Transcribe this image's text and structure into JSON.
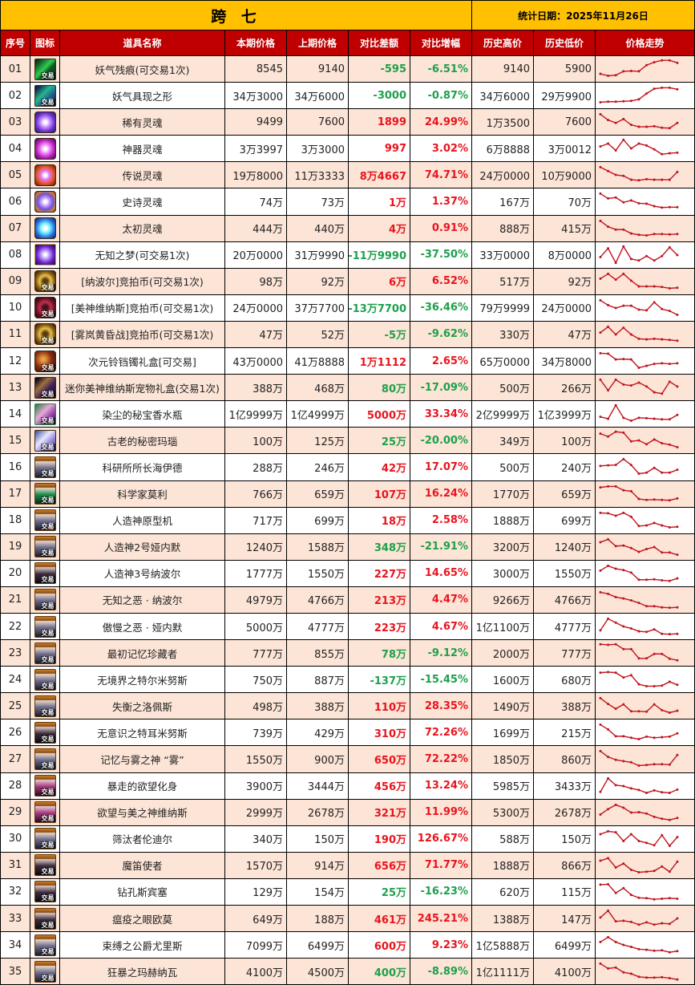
{
  "title": "跨 七",
  "stat_date_label": "统计日期：2025年11月26日",
  "columns": [
    "序号",
    "图标",
    "道具名称",
    "本期价格",
    "上期价格",
    "对比差额",
    "对比增幅",
    "历史高价",
    "历史低价",
    "价格走势"
  ],
  "colors": {
    "title_bg": "#ffc000",
    "header_bg": "#c00000",
    "row_alt_bg": "#fce4d6",
    "positive": "#e8141d",
    "negative": "#1ea04c",
    "sparkline": "#c0141e"
  },
  "rows": [
    {
      "idx": "01",
      "icon": "green",
      "tag": "交易",
      "name": "妖气残痕(可交易1次)",
      "cur": "8545",
      "prev": "9140",
      "diff": "-595",
      "pct": "-6.51%",
      "trend": "neg",
      "high": "9140",
      "low": "5900",
      "spark": [
        0.75,
        0.85,
        0.82,
        0.62,
        0.6,
        0.62,
        0.3,
        0.15,
        0.05,
        0.05,
        0.18
      ]
    },
    {
      "idx": "02",
      "icon": "teal",
      "tag": "交易",
      "name": "妖气具现之形",
      "cur": "34万3000",
      "prev": "34万6000",
      "diff": "-3000",
      "pct": "-0.87%",
      "trend": "neg",
      "high": "34万6000",
      "low": "29万9900",
      "spark": [
        0.85,
        0.82,
        0.82,
        0.8,
        0.78,
        0.7,
        0.4,
        0.15,
        0.1,
        0.1,
        0.18
      ]
    },
    {
      "idx": "03",
      "icon": "soul-purple",
      "tag": "",
      "name": "稀有灵魂",
      "cur": "9499",
      "prev": "7600",
      "diff": "1899",
      "pct": "24.99%",
      "trend": "pos",
      "high": "1万3500",
      "low": "7600",
      "spark": [
        0.1,
        0.4,
        0.55,
        0.35,
        0.65,
        0.75,
        0.75,
        0.72,
        0.8,
        0.82,
        0.55
      ]
    },
    {
      "idx": "04",
      "icon": "soul-magenta",
      "tag": "",
      "name": "神器灵魂",
      "cur": "3万3997",
      "prev": "3万3000",
      "diff": "997",
      "pct": "3.02%",
      "trend": "pos",
      "high": "6万8888",
      "low": "3万0012",
      "spark": [
        0.4,
        0.25,
        0.6,
        0.05,
        0.5,
        0.25,
        0.35,
        0.55,
        0.8,
        0.75,
        0.72
      ]
    },
    {
      "idx": "05",
      "icon": "soul-orange",
      "tag": "",
      "name": "传说灵魂",
      "cur": "19万8000",
      "prev": "11万3333",
      "diff": "8万4667",
      "pct": "74.71%",
      "trend": "pos",
      "high": "24万0000",
      "low": "10万9000",
      "spark": [
        0.1,
        0.3,
        0.5,
        0.55,
        0.75,
        0.78,
        0.72,
        0.75,
        0.75,
        0.75,
        0.35
      ]
    },
    {
      "idx": "06",
      "icon": "soul-blueorange",
      "tag": "",
      "name": "史诗灵魂",
      "cur": "74万",
      "prev": "73万",
      "diff": "1万",
      "pct": "1.37%",
      "trend": "pos",
      "high": "167万",
      "low": "70万",
      "spark": [
        0.1,
        0.35,
        0.3,
        0.55,
        0.45,
        0.6,
        0.62,
        0.75,
        0.82,
        0.8,
        0.8
      ]
    },
    {
      "idx": "07",
      "icon": "soul-cyan",
      "tag": "",
      "name": "太初灵魂",
      "cur": "444万",
      "prev": "440万",
      "diff": "4万",
      "pct": "0.91%",
      "trend": "pos",
      "high": "888万",
      "low": "415万",
      "spark": [
        0.1,
        0.4,
        0.55,
        0.55,
        0.75,
        0.82,
        0.85,
        0.78,
        0.78,
        0.8,
        0.78
      ]
    },
    {
      "idx": "08",
      "icon": "dream",
      "tag": "",
      "name": "无知之梦(可交易1次)",
      "cur": "20万0000",
      "prev": "31万9990",
      "diff": "-11万9990",
      "pct": "-37.50%",
      "trend": "neg",
      "high": "33万0000",
      "low": "8万0000",
      "spark": [
        0.6,
        0.15,
        0.9,
        0.05,
        0.7,
        0.78,
        0.55,
        0.78,
        0.55,
        0.1,
        0.5
      ]
    },
    {
      "idx": "09",
      "icon": "coin-gold",
      "tag": "交易",
      "name": "[纳波尔]竞拍币(可交易1次)",
      "cur": "98万",
      "prev": "92万",
      "diff": "6万",
      "pct": "6.52%",
      "trend": "pos",
      "high": "517万",
      "low": "92万",
      "spark": [
        0.35,
        0.1,
        0.4,
        0.1,
        0.45,
        0.75,
        0.75,
        0.75,
        0.78,
        0.85,
        0.82
      ]
    },
    {
      "idx": "10",
      "icon": "coin-red",
      "tag": "交易",
      "name": "[美神维纳斯]竞拍币(可交易1次)",
      "cur": "24万0000",
      "prev": "37万7700",
      "diff": "-13万7700",
      "pct": "-36.46%",
      "trend": "neg",
      "high": "79万9999",
      "low": "24万0000",
      "spark": [
        0.1,
        0.35,
        0.5,
        0.38,
        0.38,
        0.58,
        0.62,
        0.2,
        0.55,
        0.65,
        0.85
      ]
    },
    {
      "idx": "11",
      "icon": "coin-gold",
      "tag": "交易",
      "name": "[雾岚黄昏战]竞拍币(可交易1次)",
      "cur": "47万",
      "prev": "52万",
      "diff": "-5万",
      "pct": "-9.62%",
      "trend": "neg",
      "high": "330万",
      "low": "47万",
      "spark": [
        0.4,
        0.1,
        0.5,
        0.15,
        0.5,
        0.72,
        0.75,
        0.72,
        0.75,
        0.78,
        0.82
      ]
    },
    {
      "idx": "12",
      "icon": "bracelet",
      "tag": "交易",
      "name": "次元铃铛镯礼盒[可交易]",
      "cur": "43万0000",
      "prev": "41万8888",
      "diff": "1万1112",
      "pct": "2.65%",
      "trend": "pos",
      "high": "65万0000",
      "low": "34万8000",
      "spark": [
        0.1,
        0.12,
        0.42,
        0.4,
        0.42,
        0.85,
        0.75,
        0.65,
        0.62,
        0.65,
        0.62
      ]
    },
    {
      "idx": "13",
      "icon": "pet",
      "tag": "交易",
      "name": "迷你美神维纳斯宠物礼盒(交易1次)",
      "cur": "388万",
      "prev": "468万",
      "diff": "80万",
      "pct": "-17.09%",
      "trend": "neg",
      "high": "500万",
      "low": "266万",
      "spark": [
        0.1,
        0.65,
        0.1,
        0.35,
        0.4,
        0.25,
        0.45,
        0.75,
        0.82,
        0.2,
        0.45
      ]
    },
    {
      "idx": "14",
      "icon": "perfume",
      "tag": "交易",
      "name": "染尘的秘宝香水瓶",
      "cur": "1亿9999万",
      "prev": "1亿4999万",
      "diff": "5000万",
      "pct": "33.34%",
      "trend": "pos",
      "high": "2亿9999万",
      "low": "1亿3999万",
      "spark": [
        0.65,
        0.75,
        0.05,
        0.7,
        0.85,
        0.7,
        0.72,
        0.75,
        0.78,
        0.78,
        0.55
      ]
    },
    {
      "idx": "15",
      "icon": "agate",
      "tag": "交易",
      "name": "古老的秘密玛瑙",
      "cur": "100万",
      "prev": "125万",
      "diff": "25万",
      "pct": "-20.00%",
      "trend": "neg",
      "high": "349万",
      "low": "100万",
      "spark": [
        0.15,
        0.3,
        0.05,
        0.1,
        0.55,
        0.5,
        0.7,
        0.45,
        0.65,
        0.72,
        0.85
      ]
    },
    {
      "idx": "16",
      "icon": "card",
      "tag": "交易",
      "name": "科研所所长海伊德",
      "cur": "288万",
      "prev": "246万",
      "diff": "42万",
      "pct": "17.07%",
      "trend": "pos",
      "high": "500万",
      "low": "240万",
      "spark": [
        0.45,
        0.42,
        0.4,
        0.1,
        0.4,
        0.85,
        0.8,
        0.55,
        0.8,
        0.8,
        0.65
      ]
    },
    {
      "idx": "17",
      "icon": "card green",
      "tag": "交易",
      "name": "科学家莫利",
      "cur": "766万",
      "prev": "659万",
      "diff": "107万",
      "pct": "16.24%",
      "trend": "pos",
      "high": "1770万",
      "low": "659万",
      "spark": [
        0.15,
        0.1,
        0.1,
        0.3,
        0.35,
        0.75,
        0.8,
        0.78,
        0.8,
        0.82,
        0.72
      ]
    },
    {
      "idx": "18",
      "icon": "card",
      "tag": "交易",
      "name": "人造神原型机",
      "cur": "717万",
      "prev": "699万",
      "diff": "18万",
      "pct": "2.58%",
      "trend": "pos",
      "high": "1888万",
      "low": "699万",
      "spark": [
        0.1,
        0.12,
        0.25,
        0.1,
        0.3,
        0.78,
        0.75,
        0.62,
        0.75,
        0.85,
        0.82
      ]
    },
    {
      "idx": "19",
      "icon": "card",
      "tag": "交易",
      "name": "人造神2号娅内默",
      "cur": "1240万",
      "prev": "1588万",
      "diff": "348万",
      "pct": "-21.91%",
      "trend": "neg",
      "high": "3200万",
      "low": "1240万",
      "spark": [
        0.25,
        0.1,
        0.45,
        0.42,
        0.55,
        0.75,
        0.6,
        0.5,
        0.78,
        0.78,
        0.9
      ]
    },
    {
      "idx": "20",
      "icon": "card dark",
      "tag": "交易",
      "name": "人造神3号纳波尔",
      "cur": "1777万",
      "prev": "1550万",
      "diff": "227万",
      "pct": "14.65%",
      "trend": "pos",
      "high": "3000万",
      "low": "1550万",
      "spark": [
        0.35,
        0.1,
        0.25,
        0.32,
        0.45,
        0.82,
        0.82,
        0.8,
        0.85,
        0.88,
        0.75
      ]
    },
    {
      "idx": "21",
      "icon": "card",
      "tag": "交易",
      "name": "无知之恶 · 纳波尔",
      "cur": "4979万",
      "prev": "4766万",
      "diff": "213万",
      "pct": "4.47%",
      "trend": "pos",
      "high": "9266万",
      "low": "4766万",
      "spark": [
        0.1,
        0.18,
        0.35,
        0.42,
        0.52,
        0.65,
        0.82,
        0.82,
        0.88,
        0.9,
        0.88
      ]
    },
    {
      "idx": "22",
      "icon": "card",
      "tag": "交易",
      "name": "傲慢之恶 · 娅内默",
      "cur": "5000万",
      "prev": "4777万",
      "diff": "223万",
      "pct": "4.67%",
      "trend": "pos",
      "high": "1亿1100万",
      "low": "4777万",
      "spark": [
        0.7,
        0.1,
        0.3,
        0.5,
        0.6,
        0.75,
        0.78,
        0.65,
        0.88,
        0.9,
        0.88
      ]
    },
    {
      "idx": "23",
      "icon": "card",
      "tag": "交易",
      "name": "最初记忆珍藏者",
      "cur": "777万",
      "prev": "855万",
      "diff": "78万",
      "pct": "-9.12%",
      "trend": "neg",
      "high": "2000万",
      "low": "777万",
      "spark": [
        0.05,
        0.08,
        0.05,
        0.3,
        0.3,
        0.78,
        0.78,
        0.55,
        0.55,
        0.8,
        0.88
      ]
    },
    {
      "idx": "24",
      "icon": "card",
      "tag": "交易",
      "name": "无境界之特尔米努斯",
      "cur": "750万",
      "prev": "887万",
      "diff": "-137万",
      "pct": "-15.45%",
      "trend": "neg",
      "high": "1600万",
      "low": "680万",
      "spark": [
        0.15,
        0.12,
        0.15,
        0.4,
        0.28,
        0.75,
        0.85,
        0.85,
        0.82,
        0.62,
        0.78
      ]
    },
    {
      "idx": "25",
      "icon": "card",
      "tag": "交易",
      "name": "失衡之洛佩斯",
      "cur": "498万",
      "prev": "388万",
      "diff": "110万",
      "pct": "28.35%",
      "trend": "pos",
      "high": "1490万",
      "low": "388万",
      "spark": [
        0.1,
        0.4,
        0.65,
        0.42,
        0.78,
        0.78,
        0.8,
        0.42,
        0.72,
        0.85,
        0.75
      ]
    },
    {
      "idx": "26",
      "icon": "card dark",
      "tag": "交易",
      "name": "无意识之特耳米努斯",
      "cur": "739万",
      "prev": "429万",
      "diff": "310万",
      "pct": "72.26%",
      "trend": "pos",
      "high": "1699万",
      "low": "215万",
      "spark": [
        0.1,
        0.35,
        0.7,
        0.7,
        0.78,
        0.85,
        0.72,
        0.78,
        0.75,
        0.72,
        0.55
      ]
    },
    {
      "idx": "27",
      "icon": "card",
      "tag": "交易",
      "name": "记忆与雾之神 “雾”",
      "cur": "1550万",
      "prev": "900万",
      "diff": "650万",
      "pct": "72.22%",
      "trend": "pos",
      "high": "1850万",
      "low": "860万",
      "spark": [
        0.1,
        0.4,
        0.55,
        0.62,
        0.68,
        0.85,
        0.82,
        0.78,
        0.78,
        0.8,
        0.3
      ]
    },
    {
      "idx": "28",
      "icon": "card pink",
      "tag": "交易",
      "name": "暴走的欲望化身",
      "cur": "3900万",
      "prev": "3444万",
      "diff": "456万",
      "pct": "13.24%",
      "trend": "pos",
      "high": "5985万",
      "low": "3433万",
      "spark": [
        0.8,
        0.1,
        0.45,
        0.5,
        0.62,
        0.7,
        0.85,
        0.72,
        0.82,
        0.85,
        0.68
      ]
    },
    {
      "idx": "29",
      "icon": "card pink",
      "tag": "交易",
      "name": "欲望与美之神维纳斯",
      "cur": "2999万",
      "prev": "2678万",
      "diff": "321万",
      "pct": "11.99%",
      "trend": "pos",
      "high": "5300万",
      "low": "2678万",
      "spark": [
        0.6,
        0.32,
        0.1,
        0.25,
        0.5,
        0.48,
        0.55,
        0.72,
        0.82,
        0.88,
        0.78
      ]
    },
    {
      "idx": "30",
      "icon": "card",
      "tag": "交易",
      "name": "筛汰者伦迪尔",
      "cur": "340万",
      "prev": "150万",
      "diff": "190万",
      "pct": "126.67%",
      "trend": "pos",
      "high": "588万",
      "low": "150万",
      "spark": [
        0.25,
        0.1,
        0.15,
        0.6,
        0.25,
        0.6,
        0.7,
        0.82,
        0.3,
        0.85,
        0.4
      ]
    },
    {
      "idx": "31",
      "icon": "card dark",
      "tag": "交易",
      "name": "魔笛使者",
      "cur": "1570万",
      "prev": "914万",
      "diff": "656万",
      "pct": "71.77%",
      "trend": "pos",
      "high": "1888万",
      "low": "866万",
      "spark": [
        0.25,
        0.12,
        0.6,
        0.4,
        0.72,
        0.85,
        0.82,
        0.78,
        0.55,
        0.82,
        0.3
      ]
    },
    {
      "idx": "32",
      "icon": "card dark",
      "tag": "交易",
      "name": "钻孔斯宾塞",
      "cur": "129万",
      "prev": "154万",
      "diff": "25万",
      "pct": "-16.23%",
      "trend": "neg",
      "high": "620万",
      "low": "115万",
      "spark": [
        0.12,
        0.1,
        0.55,
        0.3,
        0.65,
        0.8,
        0.82,
        0.88,
        0.85,
        0.82,
        0.85
      ]
    },
    {
      "idx": "33",
      "icon": "card dark",
      "tag": "交易",
      "name": "瘟疫之眼欧莫",
      "cur": "649万",
      "prev": "188万",
      "diff": "461万",
      "pct": "245.21%",
      "trend": "pos",
      "high": "1388万",
      "low": "147万",
      "spark": [
        0.45,
        0.1,
        0.65,
        0.62,
        0.68,
        0.82,
        0.7,
        0.82,
        0.75,
        0.78,
        0.5
      ]
    },
    {
      "idx": "34",
      "icon": "card",
      "tag": "交易",
      "name": "束缚之公爵尤里斯",
      "cur": "7099万",
      "prev": "6499万",
      "diff": "600万",
      "pct": "9.23%",
      "trend": "pos",
      "high": "1亿5888万",
      "low": "6499万",
      "spark": [
        0.35,
        0.1,
        0.35,
        0.5,
        0.6,
        0.72,
        0.75,
        0.8,
        0.78,
        0.88,
        0.82
      ]
    },
    {
      "idx": "35",
      "icon": "card",
      "tag": "交易",
      "name": "狂暴之玛赫纳瓦",
      "cur": "4100万",
      "prev": "4500万",
      "diff": "400万",
      "pct": "-8.89%",
      "trend": "neg",
      "high": "1亿1111万",
      "low": "4100万",
      "spark": [
        0.1,
        0.35,
        0.3,
        0.55,
        0.62,
        0.78,
        0.82,
        0.82,
        0.8,
        0.85,
        0.92
      ]
    }
  ]
}
